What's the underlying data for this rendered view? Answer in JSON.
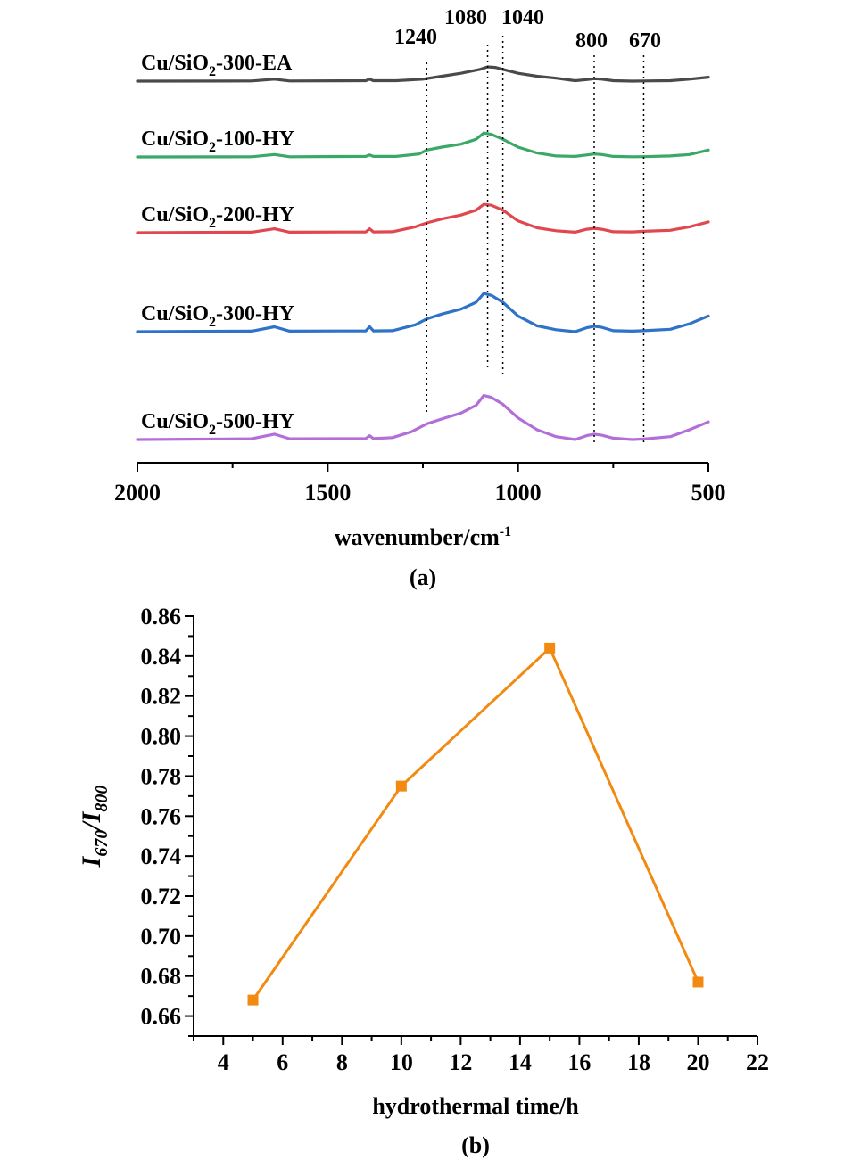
{
  "chart_data": [
    {
      "panel": "a",
      "type": "line",
      "caption": "(a)",
      "xlabel_base": "wavenumber/cm",
      "xlabel_sup": "-1",
      "xlim": [
        2000,
        500
      ],
      "xticks": [
        "2000",
        "1500",
        "1000",
        "500"
      ],
      "xtick_values": [
        2000,
        1500,
        1000,
        500
      ],
      "markers": [
        {
          "label": "1240",
          "x": 1240
        },
        {
          "label": "1080",
          "x": 1080
        },
        {
          "label": "1040",
          "x": 1040
        },
        {
          "label": "800",
          "x": 800
        },
        {
          "label": "670",
          "x": 670
        }
      ],
      "series": [
        {
          "name_pre": "Cu/SiO",
          "name_sub": "2",
          "name_post": "-300-EA",
          "color": "#4a4a4a",
          "offset": 4,
          "points": [
            [
              2000,
              0
            ],
            [
              1700,
              0.02
            ],
            [
              1640,
              0.2
            ],
            [
              1600,
              0.02
            ],
            [
              1400,
              0.05
            ],
            [
              1390,
              0.2
            ],
            [
              1380,
              0.05
            ],
            [
              1320,
              0.05
            ],
            [
              1250,
              0.2
            ],
            [
              1200,
              0.5
            ],
            [
              1150,
              0.8
            ],
            [
              1100,
              1.2
            ],
            [
              1080,
              1.45
            ],
            [
              1060,
              1.4
            ],
            [
              1040,
              1.2
            ],
            [
              1000,
              0.8
            ],
            [
              950,
              0.5
            ],
            [
              900,
              0.3
            ],
            [
              850,
              0.05
            ],
            [
              820,
              0.15
            ],
            [
              800,
              0.25
            ],
            [
              780,
              0.2
            ],
            [
              750,
              0.05
            ],
            [
              700,
              0
            ],
            [
              670,
              0.02
            ],
            [
              600,
              0.05
            ],
            [
              550,
              0.2
            ],
            [
              500,
              0.4
            ]
          ]
        },
        {
          "name_pre": "Cu/SiO",
          "name_sub": "2",
          "name_post": "-100-HY",
          "color": "#3aa866",
          "offset": 3,
          "points": [
            [
              2000,
              0
            ],
            [
              1700,
              0.02
            ],
            [
              1640,
              0.25
            ],
            [
              1600,
              0.02
            ],
            [
              1400,
              0.05
            ],
            [
              1390,
              0.2
            ],
            [
              1380,
              0.05
            ],
            [
              1320,
              0.05
            ],
            [
              1260,
              0.3
            ],
            [
              1240,
              0.7
            ],
            [
              1200,
              1.0
            ],
            [
              1150,
              1.3
            ],
            [
              1110,
              1.8
            ],
            [
              1090,
              2.45
            ],
            [
              1070,
              2.3
            ],
            [
              1040,
              1.8
            ],
            [
              1000,
              1.0
            ],
            [
              950,
              0.4
            ],
            [
              900,
              0.1
            ],
            [
              850,
              0.05
            ],
            [
              820,
              0.2
            ],
            [
              800,
              0.3
            ],
            [
              780,
              0.25
            ],
            [
              750,
              0.05
            ],
            [
              700,
              0.02
            ],
            [
              670,
              0.03
            ],
            [
              600,
              0.1
            ],
            [
              550,
              0.25
            ],
            [
              500,
              0.7
            ]
          ]
        },
        {
          "name_pre": "Cu/SiO",
          "name_sub": "2",
          "name_post": "-200-HY",
          "color": "#e0474f",
          "offset": 2,
          "points": [
            [
              2000,
              0
            ],
            [
              1700,
              0.05
            ],
            [
              1640,
              0.4
            ],
            [
              1600,
              0.05
            ],
            [
              1400,
              0.08
            ],
            [
              1390,
              0.4
            ],
            [
              1380,
              0.08
            ],
            [
              1330,
              0.1
            ],
            [
              1270,
              0.6
            ],
            [
              1240,
              1.0
            ],
            [
              1200,
              1.4
            ],
            [
              1150,
              1.8
            ],
            [
              1110,
              2.3
            ],
            [
              1090,
              2.9
            ],
            [
              1070,
              2.8
            ],
            [
              1040,
              2.3
            ],
            [
              1000,
              1.2
            ],
            [
              950,
              0.5
            ],
            [
              900,
              0.2
            ],
            [
              850,
              0.05
            ],
            [
              820,
              0.35
            ],
            [
              800,
              0.45
            ],
            [
              780,
              0.35
            ],
            [
              750,
              0.1
            ],
            [
              700,
              0.08
            ],
            [
              670,
              0.15
            ],
            [
              600,
              0.25
            ],
            [
              550,
              0.6
            ],
            [
              500,
              1.1
            ]
          ]
        },
        {
          "name_pre": "Cu/SiO",
          "name_sub": "2",
          "name_post": "-300-HY",
          "color": "#2f73c8",
          "offset": 1,
          "points": [
            [
              2000,
              0
            ],
            [
              1700,
              0.05
            ],
            [
              1640,
              0.5
            ],
            [
              1600,
              0.05
            ],
            [
              1400,
              0.08
            ],
            [
              1390,
              0.5
            ],
            [
              1380,
              0.08
            ],
            [
              1330,
              0.1
            ],
            [
              1270,
              0.7
            ],
            [
              1240,
              1.3
            ],
            [
              1200,
              1.8
            ],
            [
              1150,
              2.3
            ],
            [
              1110,
              3.0
            ],
            [
              1090,
              3.9
            ],
            [
              1070,
              3.7
            ],
            [
              1040,
              3.0
            ],
            [
              1000,
              1.6
            ],
            [
              950,
              0.6
            ],
            [
              900,
              0.2
            ],
            [
              850,
              0.0
            ],
            [
              820,
              0.4
            ],
            [
              800,
              0.55
            ],
            [
              780,
              0.45
            ],
            [
              750,
              0.1
            ],
            [
              700,
              0.05
            ],
            [
              670,
              0.1
            ],
            [
              600,
              0.25
            ],
            [
              550,
              0.8
            ],
            [
              500,
              1.6
            ]
          ]
        },
        {
          "name_pre": "Cu/SiO",
          "name_sub": "2",
          "name_post": "-500-HY",
          "color": "#b26fd8",
          "offset": 0,
          "points": [
            [
              2000,
              0
            ],
            [
              1700,
              0.08
            ],
            [
              1640,
              0.55
            ],
            [
              1600,
              0.08
            ],
            [
              1400,
              0.1
            ],
            [
              1390,
              0.4
            ],
            [
              1380,
              0.1
            ],
            [
              1330,
              0.2
            ],
            [
              1280,
              0.8
            ],
            [
              1240,
              1.6
            ],
            [
              1200,
              2.1
            ],
            [
              1150,
              2.7
            ],
            [
              1110,
              3.5
            ],
            [
              1090,
              4.5
            ],
            [
              1070,
              4.3
            ],
            [
              1040,
              3.6
            ],
            [
              1000,
              2.2
            ],
            [
              950,
              1.0
            ],
            [
              900,
              0.3
            ],
            [
              850,
              0.0
            ],
            [
              820,
              0.4
            ],
            [
              800,
              0.55
            ],
            [
              780,
              0.45
            ],
            [
              750,
              0.15
            ],
            [
              700,
              0.0
            ],
            [
              670,
              0.05
            ],
            [
              600,
              0.3
            ],
            [
              550,
              1.0
            ],
            [
              500,
              1.8
            ]
          ]
        }
      ]
    },
    {
      "panel": "b",
      "type": "line",
      "caption": "(b)",
      "xlabel": "hydrothermal time/h",
      "ylabel_num": "I",
      "ylabel_num_sub": "670",
      "ylabel_sep": "/",
      "ylabel_den": "I",
      "ylabel_den_sub": "800",
      "xlim": [
        3,
        22
      ],
      "ylim": [
        0.65,
        0.86
      ],
      "xticks": [
        4,
        6,
        8,
        10,
        12,
        14,
        16,
        18,
        20,
        22
      ],
      "yticks": [
        0.66,
        0.68,
        0.7,
        0.72,
        0.74,
        0.76,
        0.78,
        0.8,
        0.82,
        0.84,
        0.86
      ],
      "xtick_labels": [
        "4",
        "6",
        "8",
        "10",
        "12",
        "14",
        "16",
        "18",
        "20",
        "22"
      ],
      "ytick_labels": [
        "0.66",
        "0.68",
        "0.70",
        "0.72",
        "0.74",
        "0.76",
        "0.78",
        "0.80",
        "0.82",
        "0.84",
        "0.86"
      ],
      "color": "#f28a12",
      "x": [
        5,
        10,
        15,
        20
      ],
      "y": [
        0.668,
        0.775,
        0.844,
        0.677
      ]
    }
  ]
}
